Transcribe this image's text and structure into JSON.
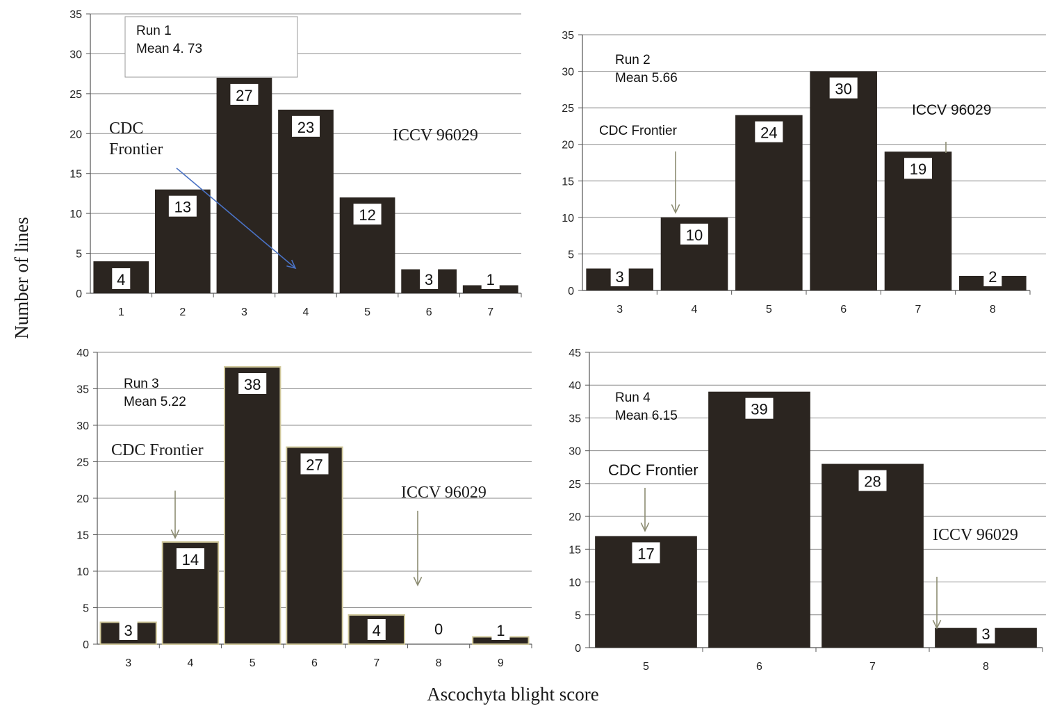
{
  "figure": {
    "ylabel": "Number of lines",
    "xlabel": "Ascochyta blight score"
  },
  "colors": {
    "bar": "#2b2520",
    "bar_outline_run3": "#cfc79a",
    "grid": "#8a8a8a",
    "arrow_run1": "#4a72c4",
    "arrow_other": "#8c8c72"
  },
  "chart_data": [
    {
      "type": "bar",
      "categories": [
        "1",
        "2",
        "3",
        "4",
        "5",
        "6",
        "7"
      ],
      "values": [
        4,
        13,
        27,
        23,
        12,
        3,
        1
      ],
      "ylim": [
        0,
        35
      ],
      "yticks": [
        "0",
        "5",
        "10",
        "15",
        "20",
        "25",
        "30",
        "35"
      ],
      "grid": true,
      "legend_box": true,
      "run_label": "Run 1",
      "mean_label": "Mean 4. 73",
      "annotations": [
        {
          "text": "CDC",
          "style": "serif"
        },
        {
          "text": "Frontier",
          "style": "serif"
        },
        {
          "text": "ICCV 96029",
          "style": "serif"
        }
      ]
    },
    {
      "type": "bar",
      "categories": [
        "3",
        "4",
        "5",
        "6",
        "7",
        "8"
      ],
      "values": [
        3,
        10,
        24,
        30,
        19,
        2
      ],
      "ylim": [
        0,
        35
      ],
      "yticks": [
        "0",
        "5",
        "10",
        "15",
        "20",
        "25",
        "30",
        "35"
      ],
      "grid": true,
      "run_label": "Run 2",
      "mean_label": "Mean 5.66",
      "annotations": [
        {
          "text": "CDC Frontier",
          "style": "sans"
        },
        {
          "text": "ICCV 96029",
          "style": "sans"
        }
      ]
    },
    {
      "type": "bar",
      "categories": [
        "3",
        "4",
        "5",
        "6",
        "7",
        "8",
        "9"
      ],
      "values": [
        3,
        14,
        38,
        27,
        4,
        0,
        1
      ],
      "ylim": [
        0,
        40
      ],
      "yticks": [
        "0",
        "5",
        "10",
        "15",
        "20",
        "25",
        "30",
        "35",
        "40"
      ],
      "grid": true,
      "run_label": "Run 3",
      "mean_label": "Mean 5.22",
      "annotations": [
        {
          "text": "CDC Frontier",
          "style": "serif"
        },
        {
          "text": "ICCV 96029",
          "style": "serif"
        }
      ]
    },
    {
      "type": "bar",
      "categories": [
        "5",
        "6",
        "7",
        "8"
      ],
      "values": [
        17,
        39,
        28,
        3
      ],
      "ylim": [
        0,
        45
      ],
      "yticks": [
        "0",
        "5",
        "10",
        "15",
        "20",
        "25",
        "30",
        "35",
        "40",
        "45"
      ],
      "grid": true,
      "run_label": "Run 4",
      "mean_label": "Mean 6.15",
      "annotations": [
        {
          "text": "CDC Frontier",
          "style": "sans"
        },
        {
          "text": "ICCV 96029",
          "style": "serif"
        }
      ]
    }
  ]
}
